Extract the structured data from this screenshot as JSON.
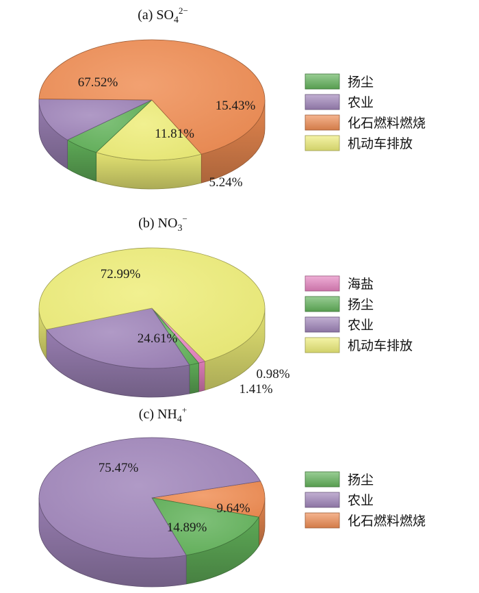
{
  "chart_data": [
    {
      "type": "pie",
      "title_prefix": "(a) SO",
      "title_sub": "4",
      "title_sup": "2−",
      "categories": [
        "扬尘",
        "农业",
        "化石燃料燃烧",
        "机动车排放"
      ],
      "values": [
        5.24,
        11.81,
        67.52,
        15.43
      ],
      "labels": [
        "5.24%",
        "11.81%",
        "67.52%",
        "15.43%"
      ],
      "legend": [
        "扬尘",
        "农业",
        "化石燃料燃烧",
        "机动车排放"
      ],
      "legend_placement": "right"
    },
    {
      "type": "pie",
      "title_prefix": "(b) NO",
      "title_sub": "3",
      "title_sup": "−",
      "categories": [
        "海盐",
        "扬尘",
        "农业",
        "机动车排放"
      ],
      "values": [
        0.98,
        1.41,
        24.61,
        72.99
      ],
      "labels": [
        "0.98%",
        "1.41%",
        "24.61%",
        "72.99%"
      ],
      "legend": [
        "海盐",
        "扬尘",
        "农业",
        "机动车排放"
      ],
      "legend_placement": "right"
    },
    {
      "type": "pie",
      "title_prefix": "(c) NH",
      "title_sub": "4",
      "title_sup": "+",
      "categories": [
        "扬尘",
        "农业",
        "化石燃料燃烧"
      ],
      "values": [
        14.89,
        75.47,
        9.64
      ],
      "labels": [
        "14.89%",
        "75.47%",
        "9.64%"
      ],
      "legend": [
        "扬尘",
        "农业",
        "化石燃料燃烧"
      ],
      "legend_placement": "right"
    }
  ],
  "colors": {
    "扬尘": "#62b25a",
    "农业": "#9f84b9",
    "化石燃料燃烧": "#ef8c52",
    "机动车排放": "#eeed78",
    "海盐": "#e583bf"
  }
}
